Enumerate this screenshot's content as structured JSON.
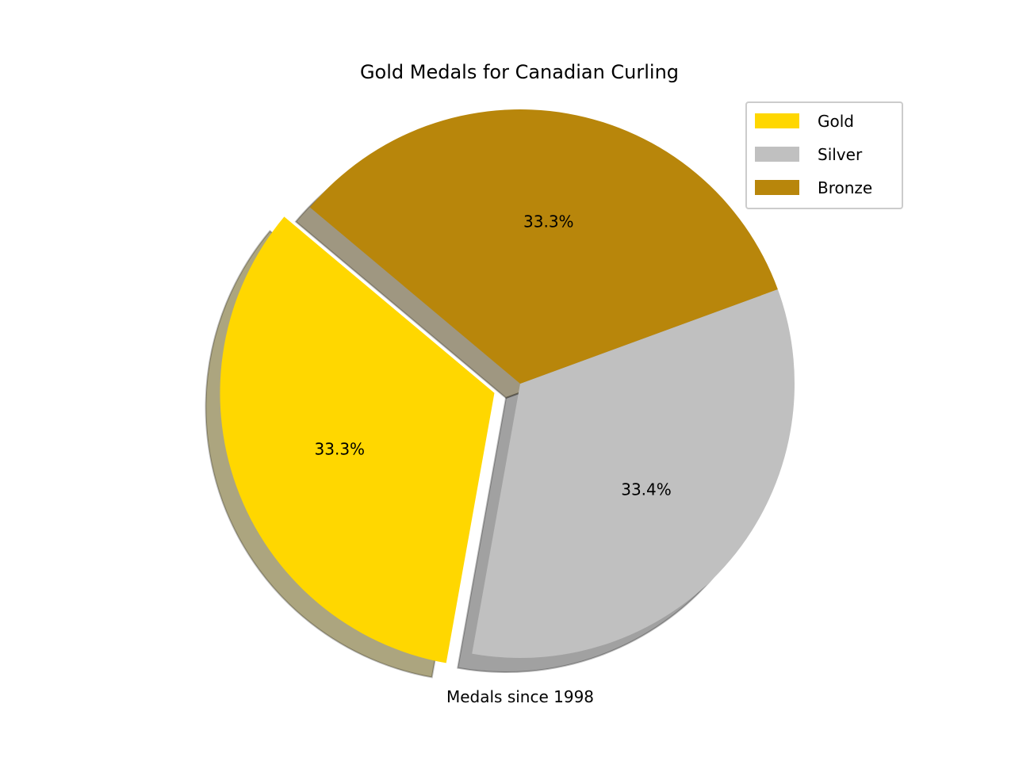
{
  "chart_data": {
    "type": "pie",
    "title": "Gold Medals for Canadian Curling",
    "xlabel": "Medals since 1998",
    "categories": [
      "Gold",
      "Silver",
      "Bronze"
    ],
    "values": [
      33.3,
      33.4,
      33.3
    ],
    "labels": [
      "33.3%",
      "33.4%",
      "33.3%"
    ],
    "colors": [
      "#FFD700",
      "#C0C0C0",
      "#B8860B"
    ],
    "explode": [
      0.1,
      0,
      0
    ],
    "shadow": true,
    "start_angle": 140,
    "legend_position": "top-right"
  }
}
